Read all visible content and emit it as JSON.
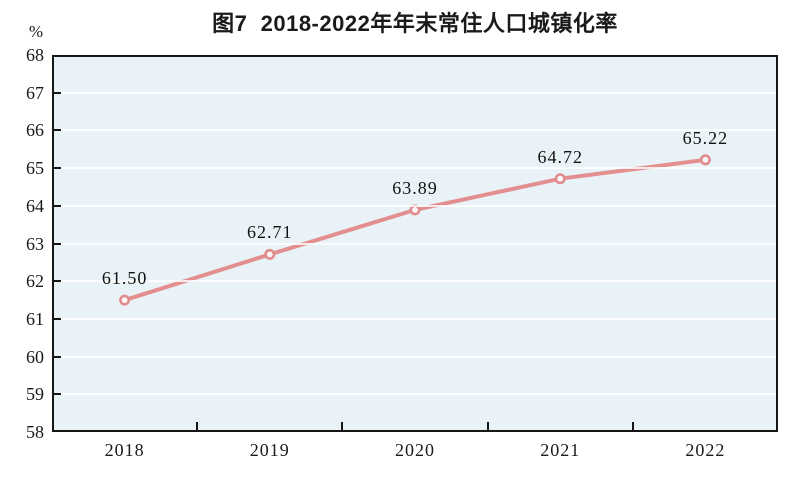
{
  "header": {
    "title": "图7  2018-2022年年末常住人口城镇化率"
  },
  "chart_data": {
    "type": "line",
    "title": "图7  2018-2022年年末常住人口城镇化率",
    "ylabel": "%",
    "xlabel": "",
    "categories": [
      "2018",
      "2019",
      "2020",
      "2021",
      "2022"
    ],
    "series": [
      {
        "name": "年末常住人口城镇化率",
        "values": [
          61.5,
          62.71,
          63.89,
          64.72,
          65.22
        ],
        "labels": [
          "61.50",
          "62.71",
          "63.89",
          "64.72",
          "65.22"
        ]
      }
    ],
    "ylim": [
      58,
      68
    ],
    "ytick_step": 1,
    "yticks": [
      "58",
      "59",
      "60",
      "61",
      "62",
      "63",
      "64",
      "65",
      "66",
      "67",
      "68"
    ],
    "grid": true,
    "legend": "none",
    "colors": {
      "line": "#e48f8f",
      "marker_fill": "#fcf7f7",
      "marker_stroke": "#e08c8c",
      "plot_bg": "#e9f2f7",
      "grid": "#f7fbfd",
      "axis": "#161616",
      "text": "#1a1a1a"
    }
  }
}
